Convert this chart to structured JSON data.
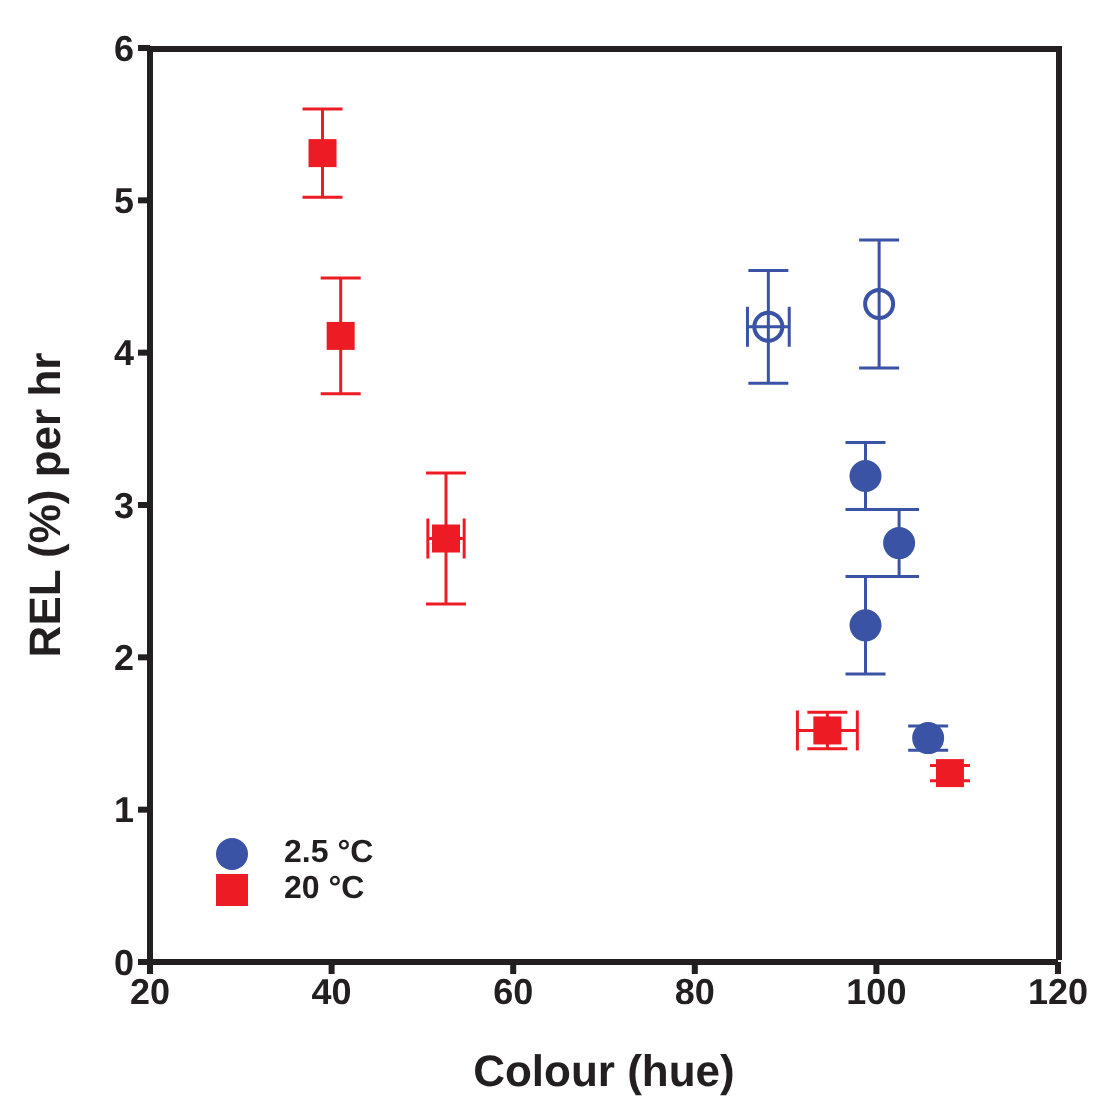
{
  "chart_data": {
    "type": "scatter",
    "xlabel": "Colour (hue)",
    "ylabel": "REL (%) per hr",
    "xlim": [
      20,
      120
    ],
    "xticks": [
      20,
      40,
      60,
      80,
      100,
      120
    ],
    "ylim": [
      0,
      6
    ],
    "yticks": [
      0,
      1,
      2,
      3,
      4,
      5,
      6
    ],
    "grid": false,
    "legend": "bottom left",
    "marker": "circle",
    "series": [
      {
        "name": "2.5 °C",
        "color": "#3a53a4",
        "x": [
          98.8,
          102.5,
          98.8,
          105.7
        ],
        "values": [
          3.19,
          2.75,
          2.21,
          1.47
        ],
        "errors": [
          0.22,
          0.22,
          0.32,
          0.08
        ],
        "xerrors": [
          null,
          null,
          null,
          null
        ]
      },
      {
        "color": "#3a53a4",
        "x": [
          88.1,
          100.3
        ],
        "values": [
          4.17,
          4.32
        ],
        "errors": [
          0.37,
          0.42
        ],
        "xerrors": [
          2.3,
          null
        ]
      },
      {
        "name": "20 °C",
        "color": "#ed1c24",
        "marker": "square",
        "x": [
          39,
          41,
          52.6,
          94.6,
          108.1
        ],
        "values": [
          5.31,
          4.11,
          2.78,
          1.52,
          1.24
        ],
        "errors": [
          0.29,
          0.38,
          0.43,
          0.12,
          0.05
        ],
        "xerrors": [
          null,
          null,
          2,
          3.3,
          null
        ]
      }
    ]
  }
}
